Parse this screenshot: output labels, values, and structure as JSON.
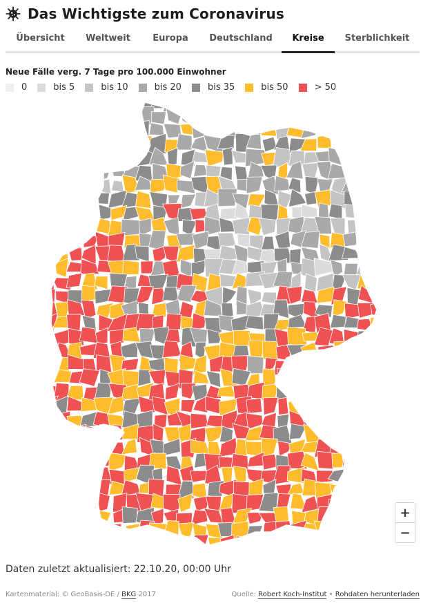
{
  "header": {
    "title": "Das Wichtigste zum Coronavirus",
    "icon": "virus-icon"
  },
  "tabs": [
    {
      "label": "Übersicht",
      "active": false
    },
    {
      "label": "Weltweit",
      "active": false
    },
    {
      "label": "Europa",
      "active": false
    },
    {
      "label": "Deutschland",
      "active": false
    },
    {
      "label": "Kreise",
      "active": true
    },
    {
      "label": "Sterblichkeit",
      "active": false
    }
  ],
  "legend": {
    "title": "Neue Fälle verg. 7 Tage pro 100.000 Einwohner",
    "items": [
      {
        "label": "0",
        "color": "#efefef"
      },
      {
        "label": "bis 5",
        "color": "#dcdcdc"
      },
      {
        "label": "bis 10",
        "color": "#c4c4c4"
      },
      {
        "label": "bis 20",
        "color": "#a9a9a9"
      },
      {
        "label": "bis 35",
        "color": "#8c8c8c"
      },
      {
        "label": "bis 50",
        "color": "#ffbd2e"
      },
      {
        "label": "> 50",
        "color": "#f05152"
      }
    ]
  },
  "zoom": {
    "in": "+",
    "out": "−"
  },
  "updated": "Daten zuletzt aktualisiert: 22.10.20, 00:00 Uhr",
  "footer": {
    "credit_prefix": "Kartenmaterial: © GeoBasis-DE /",
    "credit_link": "BKG",
    "credit_year": "2017",
    "source_prefix": "Quelle:",
    "source_link": "Robert Koch-Institut",
    "separator": "•",
    "download_link": "Rohdaten herunterladen"
  }
}
